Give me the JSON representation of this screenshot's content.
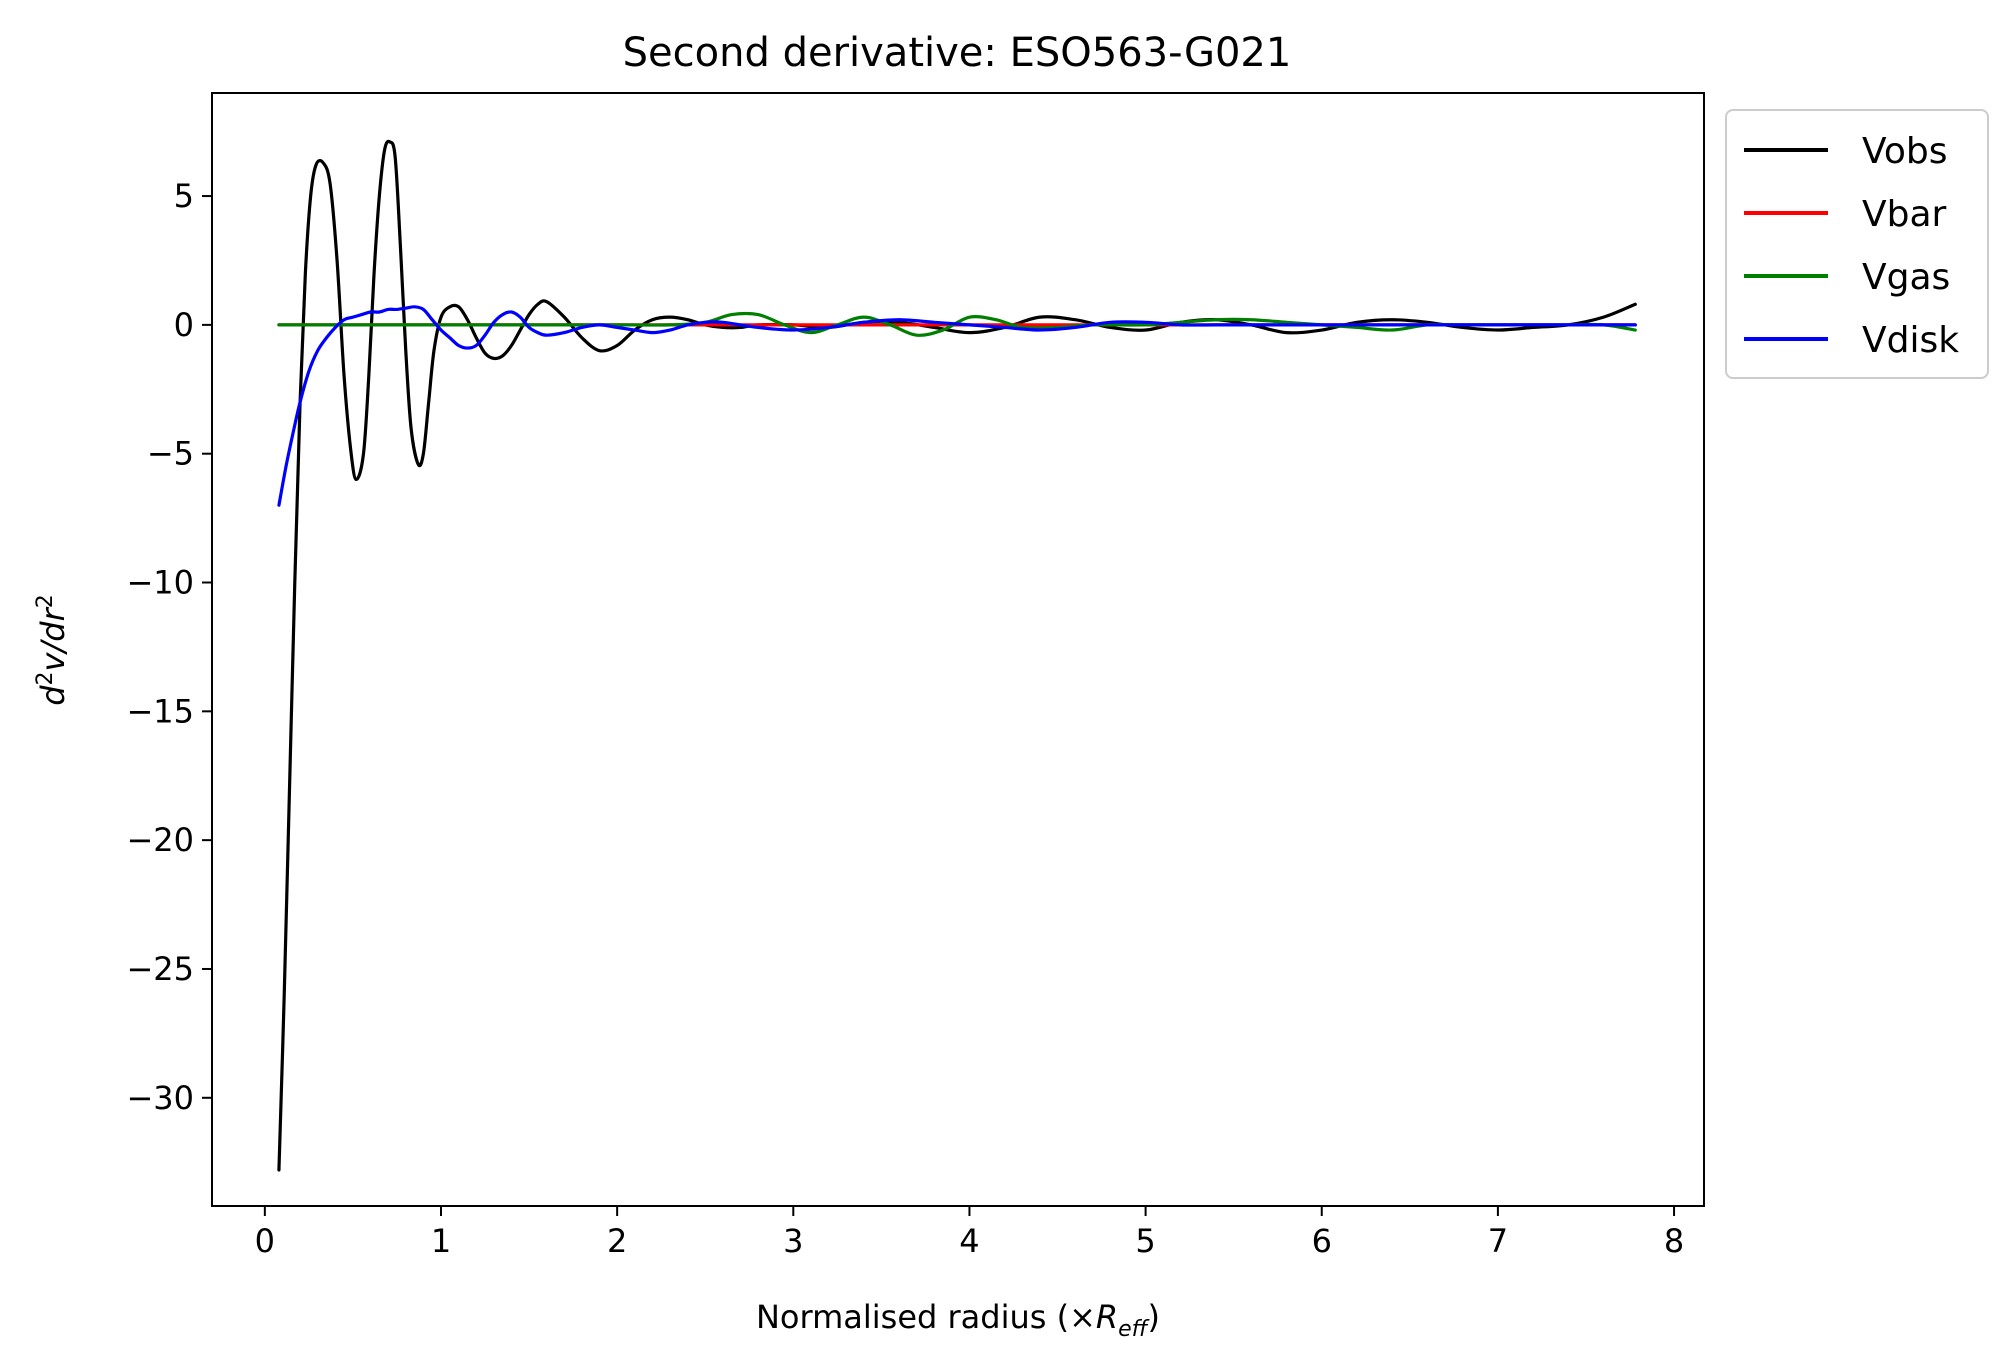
{
  "chart_data": {
    "type": "line",
    "title": "Second derivative: ESO563-G021",
    "xlabel": {
      "main": "Normalised radius (×",
      "sym": "R",
      "sub": "eff",
      "close": ")"
    },
    "ylabel": {
      "d": "d",
      "sup1": "2",
      "mid": "v/dr",
      "sup2": "2"
    },
    "xlim": [
      -0.3,
      8.17
    ],
    "ylim": [
      -34.2,
      9.0
    ],
    "xticks": [
      0,
      1,
      2,
      3,
      4,
      5,
      6,
      7,
      8
    ],
    "xtick_labels": [
      "0",
      "1",
      "2",
      "3",
      "4",
      "5",
      "6",
      "7",
      "8"
    ],
    "yticks": [
      5,
      0,
      -5,
      -10,
      -15,
      -20,
      -25,
      -30
    ],
    "ytick_labels": [
      "5",
      "0",
      "−5",
      "−10",
      "−15",
      "−20",
      "−25",
      "−30"
    ],
    "legend_position": "outside-upper-right",
    "grid": false,
    "series": [
      {
        "name": "Vobs",
        "color": "#000000",
        "x": [
          0.08,
          0.11,
          0.14,
          0.17,
          0.2,
          0.23,
          0.26,
          0.29,
          0.33,
          0.37,
          0.41,
          0.45,
          0.49,
          0.52,
          0.56,
          0.59,
          0.62,
          0.65,
          0.68,
          0.71,
          0.74,
          0.77,
          0.8,
          0.83,
          0.87,
          0.9,
          0.93,
          0.96,
          1.0,
          1.05,
          1.1,
          1.15,
          1.2,
          1.25,
          1.3,
          1.35,
          1.4,
          1.45,
          1.5,
          1.55,
          1.6,
          1.7,
          1.8,
          1.9,
          2.0,
          2.1,
          2.2,
          2.3,
          2.4,
          2.5,
          2.6,
          2.7,
          2.8,
          3.0,
          3.2,
          3.4,
          3.6,
          3.8,
          4.0,
          4.2,
          4.4,
          4.6,
          4.8,
          5.0,
          5.2,
          5.4,
          5.6,
          5.8,
          6.0,
          6.2,
          6.4,
          6.6,
          6.8,
          7.0,
          7.2,
          7.4,
          7.6,
          7.78
        ],
        "y": [
          -32.8,
          -26.0,
          -18.0,
          -10.0,
          -3.0,
          2.0,
          5.0,
          6.2,
          6.3,
          5.5,
          2.5,
          -2.0,
          -5.0,
          -6.0,
          -5.0,
          -2.0,
          2.0,
          5.0,
          6.8,
          7.1,
          6.5,
          3.0,
          -1.0,
          -4.0,
          -5.4,
          -5.0,
          -3.0,
          -1.0,
          0.3,
          0.7,
          0.7,
          0.2,
          -0.5,
          -1.1,
          -1.3,
          -1.2,
          -0.8,
          -0.2,
          0.4,
          0.8,
          0.9,
          0.3,
          -0.5,
          -1.0,
          -0.8,
          -0.2,
          0.2,
          0.3,
          0.2,
          0.0,
          -0.1,
          -0.1,
          0.0,
          0.0,
          -0.1,
          0.1,
          0.1,
          -0.1,
          -0.3,
          -0.1,
          0.3,
          0.2,
          -0.1,
          -0.2,
          0.1,
          0.2,
          0.0,
          -0.3,
          -0.2,
          0.1,
          0.2,
          0.1,
          -0.1,
          -0.2,
          -0.1,
          0.0,
          0.3,
          0.8
        ]
      },
      {
        "name": "Vbar",
        "color": "#ff0000",
        "x": [
          0.08,
          0.5,
          1.0,
          1.5,
          2.0,
          2.5,
          3.0,
          3.5,
          4.0,
          4.5,
          5.0,
          5.5,
          6.0,
          6.5,
          7.0,
          7.5,
          7.78
        ],
        "y": [
          0.0,
          0.0,
          0.0,
          0.0,
          0.0,
          0.0,
          0.0,
          0.0,
          0.0,
          0.0,
          0.0,
          0.0,
          0.0,
          0.0,
          0.0,
          0.0,
          0.0
        ]
      },
      {
        "name": "Vgas",
        "color": "#008000",
        "x": [
          0.08,
          0.5,
          1.0,
          1.5,
          2.0,
          2.3,
          2.5,
          2.65,
          2.8,
          2.95,
          3.1,
          3.25,
          3.4,
          3.55,
          3.7,
          3.85,
          4.0,
          4.15,
          4.3,
          4.5,
          4.7,
          5.0,
          5.2,
          5.4,
          5.6,
          5.8,
          6.0,
          6.2,
          6.4,
          6.6,
          6.8,
          7.0,
          7.2,
          7.4,
          7.6,
          7.78
        ],
        "y": [
          0.0,
          0.0,
          0.0,
          0.0,
          0.0,
          0.0,
          0.1,
          0.4,
          0.4,
          0.0,
          -0.3,
          0.0,
          0.3,
          0.0,
          -0.4,
          -0.2,
          0.3,
          0.2,
          -0.1,
          -0.1,
          0.0,
          0.0,
          0.1,
          0.2,
          0.2,
          0.1,
          0.0,
          -0.1,
          -0.2,
          0.0,
          0.0,
          0.0,
          0.0,
          0.0,
          0.0,
          -0.2
        ]
      },
      {
        "name": "Vdisk",
        "color": "#0000ff",
        "x": [
          0.08,
          0.12,
          0.16,
          0.2,
          0.25,
          0.3,
          0.35,
          0.4,
          0.45,
          0.5,
          0.55,
          0.6,
          0.65,
          0.7,
          0.75,
          0.8,
          0.85,
          0.9,
          0.95,
          1.0,
          1.05,
          1.1,
          1.15,
          1.2,
          1.25,
          1.3,
          1.35,
          1.4,
          1.45,
          1.5,
          1.55,
          1.6,
          1.7,
          1.8,
          1.9,
          2.0,
          2.1,
          2.2,
          2.3,
          2.4,
          2.5,
          2.6,
          2.8,
          3.0,
          3.2,
          3.4,
          3.6,
          3.8,
          4.0,
          4.2,
          4.4,
          4.6,
          4.8,
          5.0,
          5.2,
          5.4,
          5.6,
          5.8,
          6.0,
          6.2,
          6.4,
          6.6,
          6.8,
          7.0,
          7.2,
          7.4,
          7.6,
          7.78
        ],
        "y": [
          -7.0,
          -5.5,
          -4.2,
          -3.0,
          -1.8,
          -1.0,
          -0.5,
          -0.1,
          0.2,
          0.3,
          0.4,
          0.5,
          0.5,
          0.6,
          0.6,
          0.65,
          0.7,
          0.6,
          0.2,
          -0.2,
          -0.5,
          -0.8,
          -0.9,
          -0.8,
          -0.4,
          0.1,
          0.4,
          0.5,
          0.3,
          -0.1,
          -0.3,
          -0.4,
          -0.3,
          -0.1,
          0.0,
          -0.1,
          -0.2,
          -0.3,
          -0.2,
          0.0,
          0.1,
          0.1,
          -0.1,
          -0.2,
          -0.1,
          0.1,
          0.2,
          0.1,
          0.0,
          -0.1,
          -0.2,
          -0.1,
          0.1,
          0.1,
          0.0,
          0.0,
          0.0,
          0.0,
          0.0,
          0.0,
          0.0,
          0.0,
          0.0,
          0.0,
          0.0,
          0.0,
          0.0,
          0.0
        ]
      }
    ]
  }
}
